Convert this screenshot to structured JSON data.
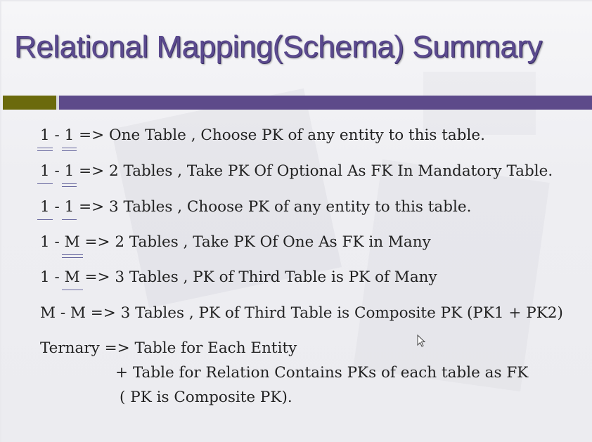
{
  "slide": {
    "title": "Relational Mapping(Schema) Summary",
    "colors": {
      "title": "#5b4a8e",
      "bar_left": "#6b6a0c",
      "bar_right": "#5d4a8a",
      "text": "#222222"
    }
  },
  "rules": [
    {
      "left": "1",
      "sep": " - ",
      "right": "1",
      "rest": " => One Table , Choose PK of any entity to this table."
    },
    {
      "left": "1",
      "sep": " - ",
      "right": "1",
      "rest": " => 2 Tables , Take PK Of Optional As FK In Mandatory Table."
    },
    {
      "left": "1",
      "sep": " - ",
      "right": "1",
      "rest": " => 3 Tables ,  Choose PK of any entity to this table."
    },
    {
      "left": "1",
      "sep": " - ",
      "right": "M",
      "rest": " => 2 Tables , Take PK Of One As FK in Many"
    },
    {
      "left": "1",
      "sep": " - ",
      "right": "M",
      "rest": " => 3 Tables , PK of Third Table is PK of Many"
    },
    {
      "text": "M - M => 3 Tables , PK of Third Table is Composite PK (PK1 + PK2)"
    }
  ],
  "ternary": {
    "line1": "Ternary => Table for Each Entity",
    "line2": "+ Table for Relation Contains PKs of each table as FK",
    "line3": "( PK is Composite PK)."
  },
  "cursor": {
    "icon": "mouse-pointer-icon"
  }
}
